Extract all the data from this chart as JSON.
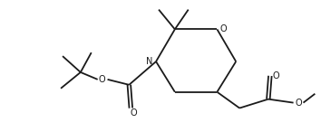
{
  "bg_color": "#ffffff",
  "line_color": "#1a1a1a",
  "line_width": 1.3,
  "figsize": [
    3.54,
    1.46
  ],
  "dpi": 100,
  "xlim": [
    0,
    354
  ],
  "ylim": [
    0,
    146
  ]
}
